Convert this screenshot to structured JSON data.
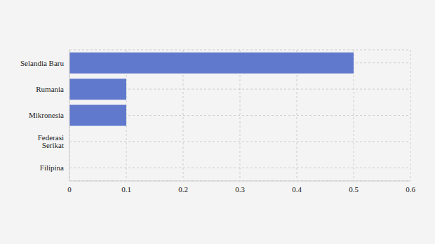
{
  "chart_data": {
    "type": "bar",
    "orientation": "horizontal",
    "categories": [
      "Selandia Baru",
      "Rumania",
      "Mikronesia",
      "Federasi Serikat",
      "Filipina"
    ],
    "values": [
      0.5,
      0.1,
      0.1,
      0,
      0
    ],
    "color": "#6079cc",
    "xlim": [
      0,
      0.6
    ],
    "xticks": [
      0,
      0.1,
      0.2,
      0.3,
      0.4,
      0.5,
      0.6
    ],
    "grid": true
  }
}
